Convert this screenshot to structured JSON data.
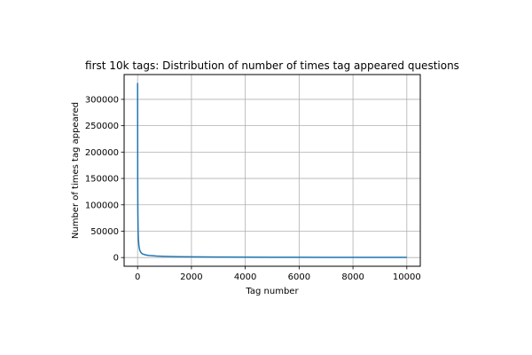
{
  "chart_data": {
    "type": "line",
    "title": "first 10k tags: Distribution of number of times tag appeared questions",
    "xlabel": "Tag number",
    "ylabel": "Number of times tag appeared",
    "xlim": [
      -500,
      10500
    ],
    "ylim": [
      -16500,
      347000
    ],
    "xticks": [
      0,
      2000,
      4000,
      6000,
      8000,
      10000
    ],
    "xtick_labels": [
      "0",
      "2000",
      "4000",
      "6000",
      "8000",
      "10000"
    ],
    "yticks": [
      0,
      50000,
      100000,
      150000,
      200000,
      250000,
      300000
    ],
    "ytick_labels": [
      "0",
      "50000",
      "100000",
      "150000",
      "200000",
      "250000",
      "300000"
    ],
    "grid": true,
    "series": [
      {
        "color": "#1f77b4",
        "x": [
          0,
          5,
          10,
          20,
          30,
          50,
          75,
          100,
          150,
          200,
          300,
          400,
          500,
          700,
          1000,
          1500,
          2000,
          3000,
          4000,
          5000,
          6000,
          7000,
          8000,
          9000,
          10000
        ],
        "y": [
          331000,
          150000,
          90000,
          50000,
          35000,
          22000,
          15000,
          11500,
          8000,
          6500,
          5000,
          4200,
          3600,
          2900,
          2300,
          1700,
          1350,
          950,
          720,
          560,
          450,
          380,
          320,
          280,
          250
        ]
      }
    ]
  }
}
